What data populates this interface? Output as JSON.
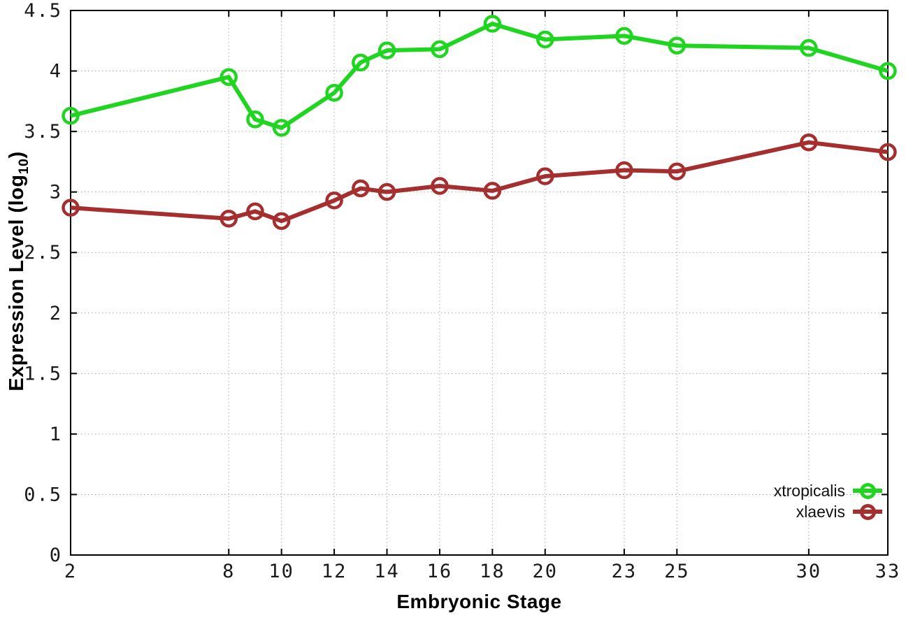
{
  "chart_data": {
    "type": "line",
    "title": "",
    "xlabel": "Embryonic Stage",
    "ylabel": "Expression Level (log10)",
    "ylabel_parts": {
      "main": "Expression Level (log",
      "sub": "10",
      "end": ")"
    },
    "x": [
      2,
      8,
      9,
      10,
      12,
      13,
      14,
      16,
      18,
      20,
      23,
      25,
      30,
      33
    ],
    "x_tick_labels": [
      "2",
      "8",
      "10",
      "12",
      "14",
      "16",
      "18",
      "20",
      "23",
      "25",
      "30",
      "33"
    ],
    "x_tick_values": [
      2,
      8,
      10,
      12,
      14,
      16,
      18,
      20,
      23,
      25,
      30,
      33
    ],
    "y_tick_labels": [
      "0",
      "0.5",
      "1",
      "1.5",
      "2",
      "2.5",
      "3",
      "3.5",
      "4",
      "4.5"
    ],
    "y_tick_values": [
      0,
      0.5,
      1,
      1.5,
      2,
      2.5,
      3,
      3.5,
      4,
      4.5
    ],
    "xlim": [
      2,
      33
    ],
    "ylim": [
      0,
      4.5
    ],
    "grid": true,
    "legend_position": "bottom-right",
    "series": [
      {
        "name": "xtropicalis",
        "color": "#1FD51F",
        "values": [
          3.63,
          3.95,
          3.6,
          3.53,
          3.82,
          4.07,
          4.17,
          4.18,
          4.39,
          4.26,
          4.29,
          4.21,
          4.19,
          4.0
        ]
      },
      {
        "name": "xlaevis",
        "color": "#A52E2E",
        "values": [
          2.87,
          2.78,
          2.84,
          2.76,
          2.93,
          3.03,
          3.0,
          3.05,
          3.01,
          3.13,
          3.18,
          3.17,
          3.41,
          3.33
        ]
      }
    ],
    "style": {
      "grid_color": "#a8a8a8",
      "axis_color": "#000000",
      "tick_label_color": "#1a1a1a"
    }
  }
}
